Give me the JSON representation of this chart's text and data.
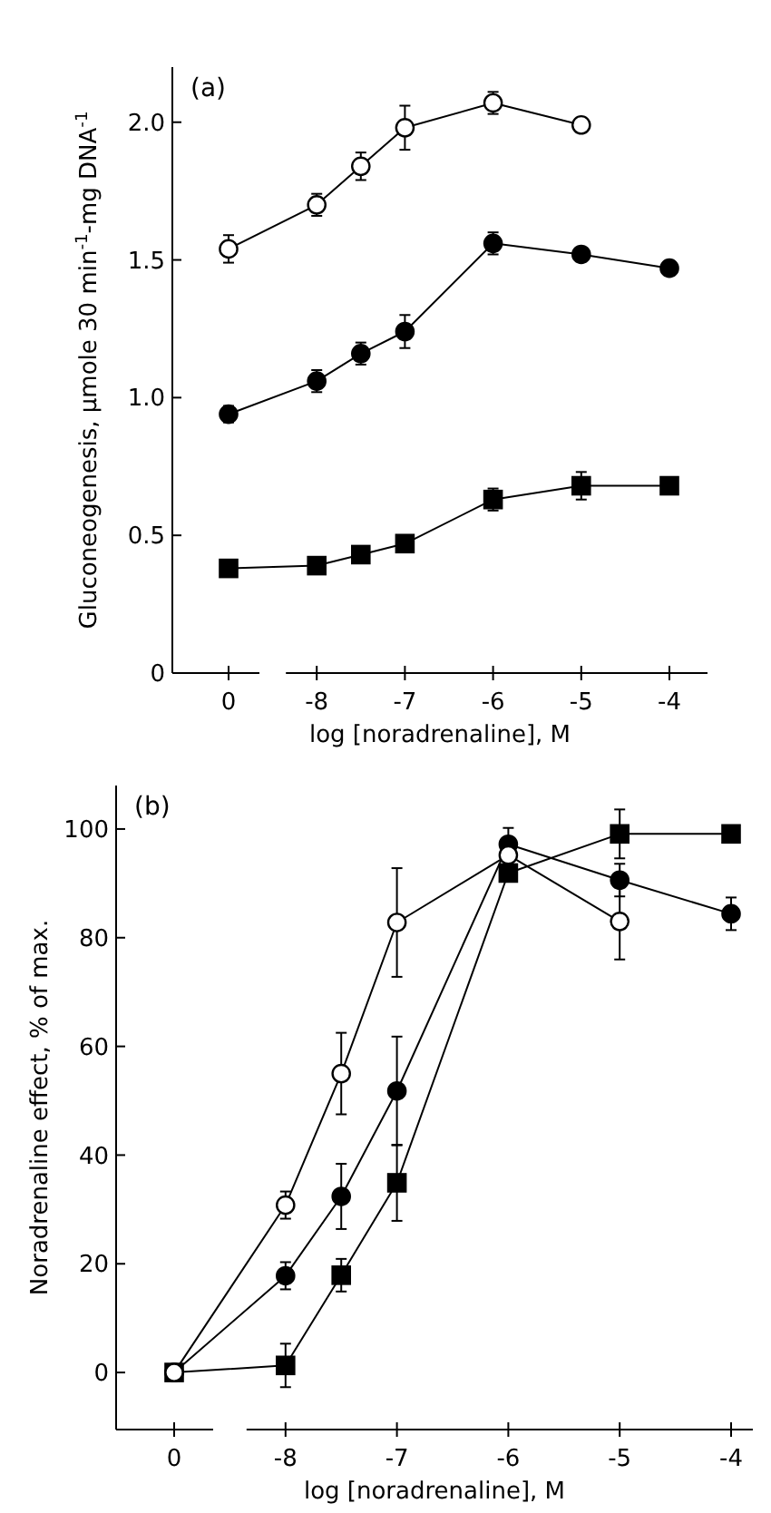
{
  "chart_data": [
    {
      "type": "line",
      "title": "(a)",
      "xlabel": "log [noradrenaline],   M",
      "ylabel": "Gluconeogenesis,   μmole 30 min$^{-1}$-mg DNA$^{-1}$",
      "categories": [
        "0",
        null,
        "-8",
        null,
        "-7",
        null,
        "-6",
        null,
        "-5",
        null,
        "-4"
      ],
      "ylim": [
        0,
        2.2
      ],
      "yticks": [
        0,
        0.5,
        {
          "value": 1,
          "label": "1.0"
        },
        1.5,
        {
          "value": 2,
          "label": "2.0"
        }
      ],
      "line_style": "solid",
      "grid": false,
      "series": [
        {
          "color": "#ffffff",
          "marker": "circle",
          "values": [
            1.54,
            null,
            1.7,
            1.84,
            1.98,
            null,
            2.07,
            null,
            1.99,
            null,
            null
          ],
          "errors": [
            0.05,
            null,
            0.04,
            0.05,
            0.08,
            null,
            0.04,
            null,
            null,
            null,
            null
          ]
        },
        {
          "color": "#000000",
          "marker": "circle",
          "values": [
            0.94,
            null,
            1.06,
            1.16,
            1.24,
            null,
            1.56,
            null,
            1.52,
            null,
            1.47
          ],
          "errors": [
            0.03,
            null,
            0.04,
            0.04,
            0.06,
            null,
            0.04,
            null,
            null,
            null,
            null
          ]
        },
        {
          "color": "#000000",
          "marker": "square",
          "values": [
            0.38,
            null,
            0.39,
            0.43,
            0.47,
            null,
            0.63,
            null,
            0.68,
            null,
            0.68
          ],
          "errors": [
            null,
            null,
            null,
            null,
            null,
            null,
            0.04,
            null,
            0.05,
            null,
            null
          ]
        }
      ]
    },
    {
      "type": "line",
      "title": "(b)",
      "xlabel": "log [noradrenaline],   M",
      "ylabel": "Noradrenaline effect,   % of max.",
      "categories": [
        "0",
        null,
        "-8",
        null,
        "-7",
        null,
        "-6",
        null,
        "-5",
        null,
        "-4"
      ],
      "ylim": [
        -10.5,
        108
      ],
      "yticks": [
        0,
        20,
        40,
        60,
        80,
        100
      ],
      "line_style": "solid",
      "grid": false,
      "series": [
        {
          "color": "#000000",
          "marker": "square",
          "values": [
            0,
            null,
            1.3,
            17.9,
            34.9,
            null,
            91.9,
            null,
            99.1,
            null,
            99.1
          ],
          "errors": [
            null,
            null,
            4,
            3,
            7,
            null,
            null,
            null,
            4.5,
            null,
            null
          ]
        },
        {
          "color": "#000000",
          "marker": "circle",
          "values": [
            0,
            null,
            17.8,
            32.4,
            51.8,
            null,
            97.2,
            null,
            90.6,
            null,
            84.4
          ],
          "errors": [
            null,
            null,
            2.5,
            6,
            10,
            null,
            3,
            null,
            3,
            null,
            3
          ]
        },
        {
          "color": "#ffffff",
          "marker": "circle",
          "values": [
            0,
            null,
            30.8,
            55,
            82.8,
            null,
            95.2,
            null,
            83,
            null,
            null
          ],
          "errors": [
            null,
            null,
            2.5,
            7.5,
            10,
            null,
            null,
            null,
            7,
            null,
            null
          ]
        }
      ]
    }
  ]
}
